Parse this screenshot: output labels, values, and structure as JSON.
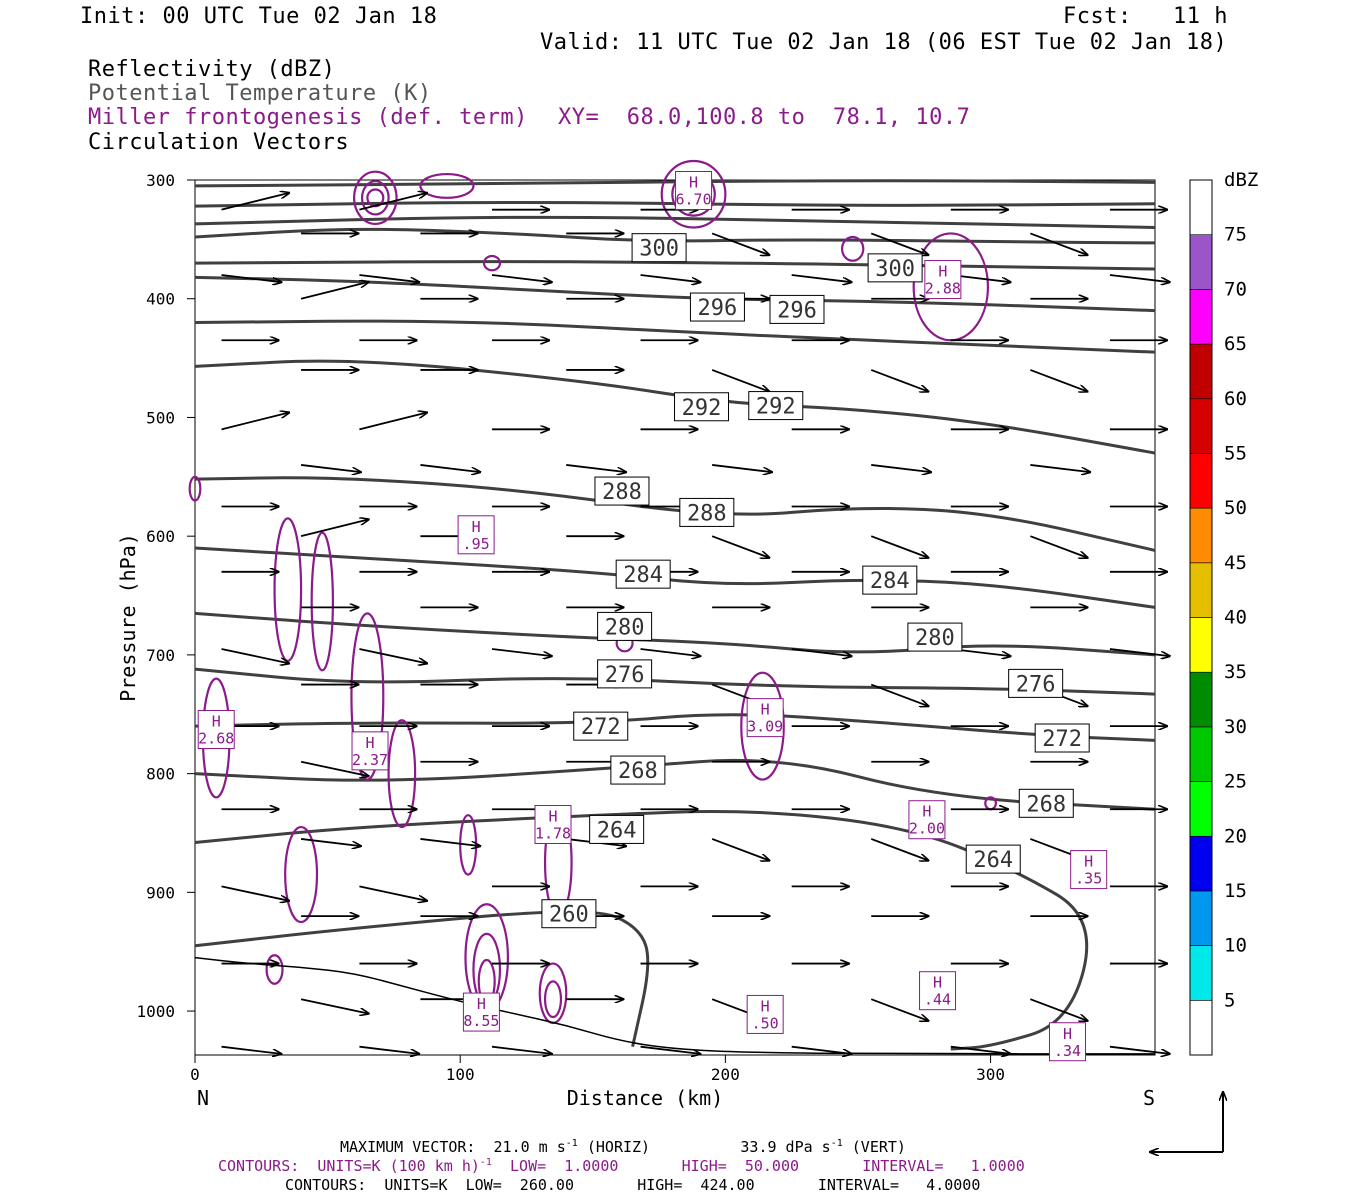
{
  "header": {
    "init": "Init: 00 UTC Tue 02 Jan 18",
    "fcst": "Fcst:   11 h",
    "valid": "Valid: 11 UTC Tue 02 Jan 18 (06 EST Tue 02 Jan 18)",
    "field1": "Reflectivity (dBZ)",
    "field2": "Potential Temperature (K)",
    "field3": "Miller frontogenesis (def. term)",
    "xy": "XY=  68.0,100.8 to  78.1, 10.7",
    "field4": "Circulation Vectors"
  },
  "colors": {
    "theta": "#404040",
    "frontogenesis": "#8b1a8b",
    "vectors": "#000000"
  },
  "colorbar": {
    "unit": "dBZ",
    "levels": [
      "5",
      "10",
      "15",
      "20",
      "25",
      "30",
      "35",
      "40",
      "45",
      "50",
      "55",
      "60",
      "65",
      "70",
      "75"
    ],
    "colors": [
      "#ffffff",
      "#00e8e8",
      "#0098ef",
      "#0000f0",
      "#00ff00",
      "#00c800",
      "#008c00",
      "#ffff00",
      "#e6be00",
      "#ff8c00",
      "#ff0000",
      "#d70000",
      "#c00000",
      "#ff00ff",
      "#9a55c8",
      "#ffffff"
    ]
  },
  "footer": {
    "line1a": "MAXIMUM VECTOR:  21.0 m s",
    "line1a_sup": "-1",
    "line1b": " (HORIZ)          33.9 dPa s",
    "line1b_sup": "-1",
    "line1c": " (VERT)",
    "line2a": "CONTOURS:  UNITS=K (100 km h)",
    "line2a_sup": "-1",
    "line2b": "  LOW=  1.0000       HIGH=  50.000       INTERVAL=   1.0000",
    "line3": "CONTOURS:  UNITS=K  LOW=  260.00       HIGH=  424.00       INTERVAL=   4.0000"
  },
  "chart_data": {
    "type": "cross-section",
    "xlabel": "Distance (km)",
    "ylabel": "Pressure (hPa)",
    "xlim": [
      0,
      362
    ],
    "ylim": [
      1037,
      300
    ],
    "x_ticks": [
      0,
      100,
      200,
      300
    ],
    "y_ticks": [
      300,
      400,
      500,
      600,
      700,
      800,
      900,
      1000
    ],
    "left_end_label": "N",
    "right_end_label": "S",
    "theta_contours": [
      {
        "label": "300",
        "points": [
          [
            0,
            348
          ],
          [
            60,
            340
          ],
          [
            120,
            345
          ],
          [
            170,
            352
          ],
          [
            230,
            350
          ],
          [
            300,
            352
          ],
          [
            362,
            353
          ]
        ],
        "label_pos": [
          175,
          357
        ]
      },
      {
        "label": "300",
        "points": [],
        "label_pos": [
          264,
          374
        ]
      },
      {
        "label": "296",
        "points": [
          [
            0,
            382
          ],
          [
            60,
            385
          ],
          [
            130,
            393
          ],
          [
            190,
            400
          ],
          [
            250,
            402
          ],
          [
            300,
            405
          ],
          [
            362,
            410
          ]
        ],
        "label_pos": [
          197,
          407
        ]
      },
      {
        "label": "296",
        "points": [],
        "label_pos": [
          227,
          409
        ]
      },
      {
        "label": "292",
        "points": [
          [
            0,
            457
          ],
          [
            60,
            450
          ],
          [
            150,
            470
          ],
          [
            200,
            488
          ],
          [
            250,
            493
          ],
          [
            300,
            505
          ],
          [
            362,
            530
          ]
        ],
        "label_pos": [
          191,
          491
        ]
      },
      {
        "label": "292",
        "points": [],
        "label_pos": [
          219,
          490
        ]
      },
      {
        "label": "288",
        "points": [
          [
            0,
            552
          ],
          [
            50,
            550
          ],
          [
            120,
            560
          ],
          [
            200,
            585
          ],
          [
            250,
            575
          ],
          [
            300,
            580
          ],
          [
            362,
            612
          ]
        ],
        "label_pos": [
          161,
          562
        ]
      },
      {
        "label": "288",
        "points": [],
        "label_pos": [
          193,
          580
        ]
      },
      {
        "label": "284",
        "points": [
          [
            0,
            610
          ],
          [
            60,
            618
          ],
          [
            150,
            630
          ],
          [
            200,
            642
          ],
          [
            250,
            636
          ],
          [
            300,
            640
          ],
          [
            362,
            660
          ]
        ],
        "label_pos": [
          169,
          632
        ]
      },
      {
        "label": "284",
        "points": [],
        "label_pos": [
          262,
          637
        ]
      },
      {
        "label": "280",
        "points": [
          [
            0,
            665
          ],
          [
            60,
            675
          ],
          [
            140,
            685
          ],
          [
            200,
            690
          ],
          [
            250,
            700
          ],
          [
            300,
            690
          ],
          [
            362,
            700
          ]
        ],
        "label_pos": [
          162,
          676
        ]
      },
      {
        "label": "280",
        "points": [],
        "label_pos": [
          279,
          685
        ]
      },
      {
        "label": "276",
        "points": [
          [
            0,
            712
          ],
          [
            60,
            725
          ],
          [
            140,
            718
          ],
          [
            220,
            727
          ],
          [
            300,
            728
          ],
          [
            362,
            733
          ]
        ],
        "label_pos": [
          162,
          716
        ]
      },
      {
        "label": "276",
        "points": [],
        "label_pos": [
          317,
          724
        ]
      },
      {
        "label": "272",
        "points": [
          [
            0,
            760
          ],
          [
            60,
            757
          ],
          [
            150,
            758
          ],
          [
            200,
            748
          ],
          [
            260,
            757
          ],
          [
            320,
            768
          ],
          [
            362,
            772
          ]
        ],
        "label_pos": [
          153,
          760
        ]
      },
      {
        "label": "272",
        "points": [],
        "label_pos": [
          327,
          770
        ]
      },
      {
        "label": "268",
        "points": [
          [
            0,
            800
          ],
          [
            70,
            808
          ],
          [
            160,
            795
          ],
          [
            220,
            785
          ],
          [
            280,
            820
          ],
          [
            362,
            830
          ]
        ],
        "label_pos": [
          167,
          797
        ]
      },
      {
        "label": "268",
        "points": [],
        "label_pos": [
          321,
          825
        ]
      },
      {
        "label": "264",
        "points": [
          [
            0,
            858
          ],
          [
            60,
            845
          ],
          [
            150,
            835
          ],
          [
            210,
            830
          ],
          [
            270,
            845
          ],
          [
            310,
            882
          ],
          [
            340,
            922
          ],
          [
            330,
            1010
          ],
          [
            300,
            1030
          ],
          [
            285,
            1032
          ]
        ],
        "label_pos": [
          159,
          847
        ]
      },
      {
        "label": "264",
        "points": [],
        "label_pos": [
          301,
          872
        ]
      },
      {
        "label": "260",
        "points": [
          [
            0,
            945
          ],
          [
            60,
            930
          ],
          [
            150,
            912
          ],
          [
            168,
            930
          ],
          [
            172,
            960
          ],
          [
            165,
            1030
          ]
        ],
        "label_pos": [
          141,
          918
        ]
      }
    ],
    "frontogenesis_maxima": [
      {
        "label": "H",
        "value": "6.70",
        "x": 188,
        "p": 308
      },
      {
        "label": "H",
        "value": "2.88",
        "x": 282,
        "p": 383
      },
      {
        "label": "H",
        "value": ".95",
        "x": 106,
        "p": 598
      },
      {
        "label": "H",
        "value": "2.68",
        "x": 8,
        "p": 762
      },
      {
        "label": "H",
        "value": "2.37",
        "x": 66,
        "p": 780
      },
      {
        "label": "H",
        "value": "3.09",
        "x": 215,
        "p": 752
      },
      {
        "label": "H",
        "value": "1.78",
        "x": 135,
        "p": 842
      },
      {
        "label": "H",
        "value": "2.00",
        "x": 276,
        "p": 838
      },
      {
        "label": "H",
        "value": ".35",
        "x": 337,
        "p": 880
      },
      {
        "label": "H",
        "value": ".44",
        "x": 280,
        "p": 982
      },
      {
        "label": "H",
        "value": "8.55",
        "x": 108,
        "p": 1000
      },
      {
        "label": "H",
        "value": ".50",
        "x": 215,
        "p": 1002
      },
      {
        "label": "H",
        "value": ".34",
        "x": 329,
        "p": 1025
      }
    ],
    "vectors_note": "circulation vectors (u, omega) on regular grid"
  }
}
